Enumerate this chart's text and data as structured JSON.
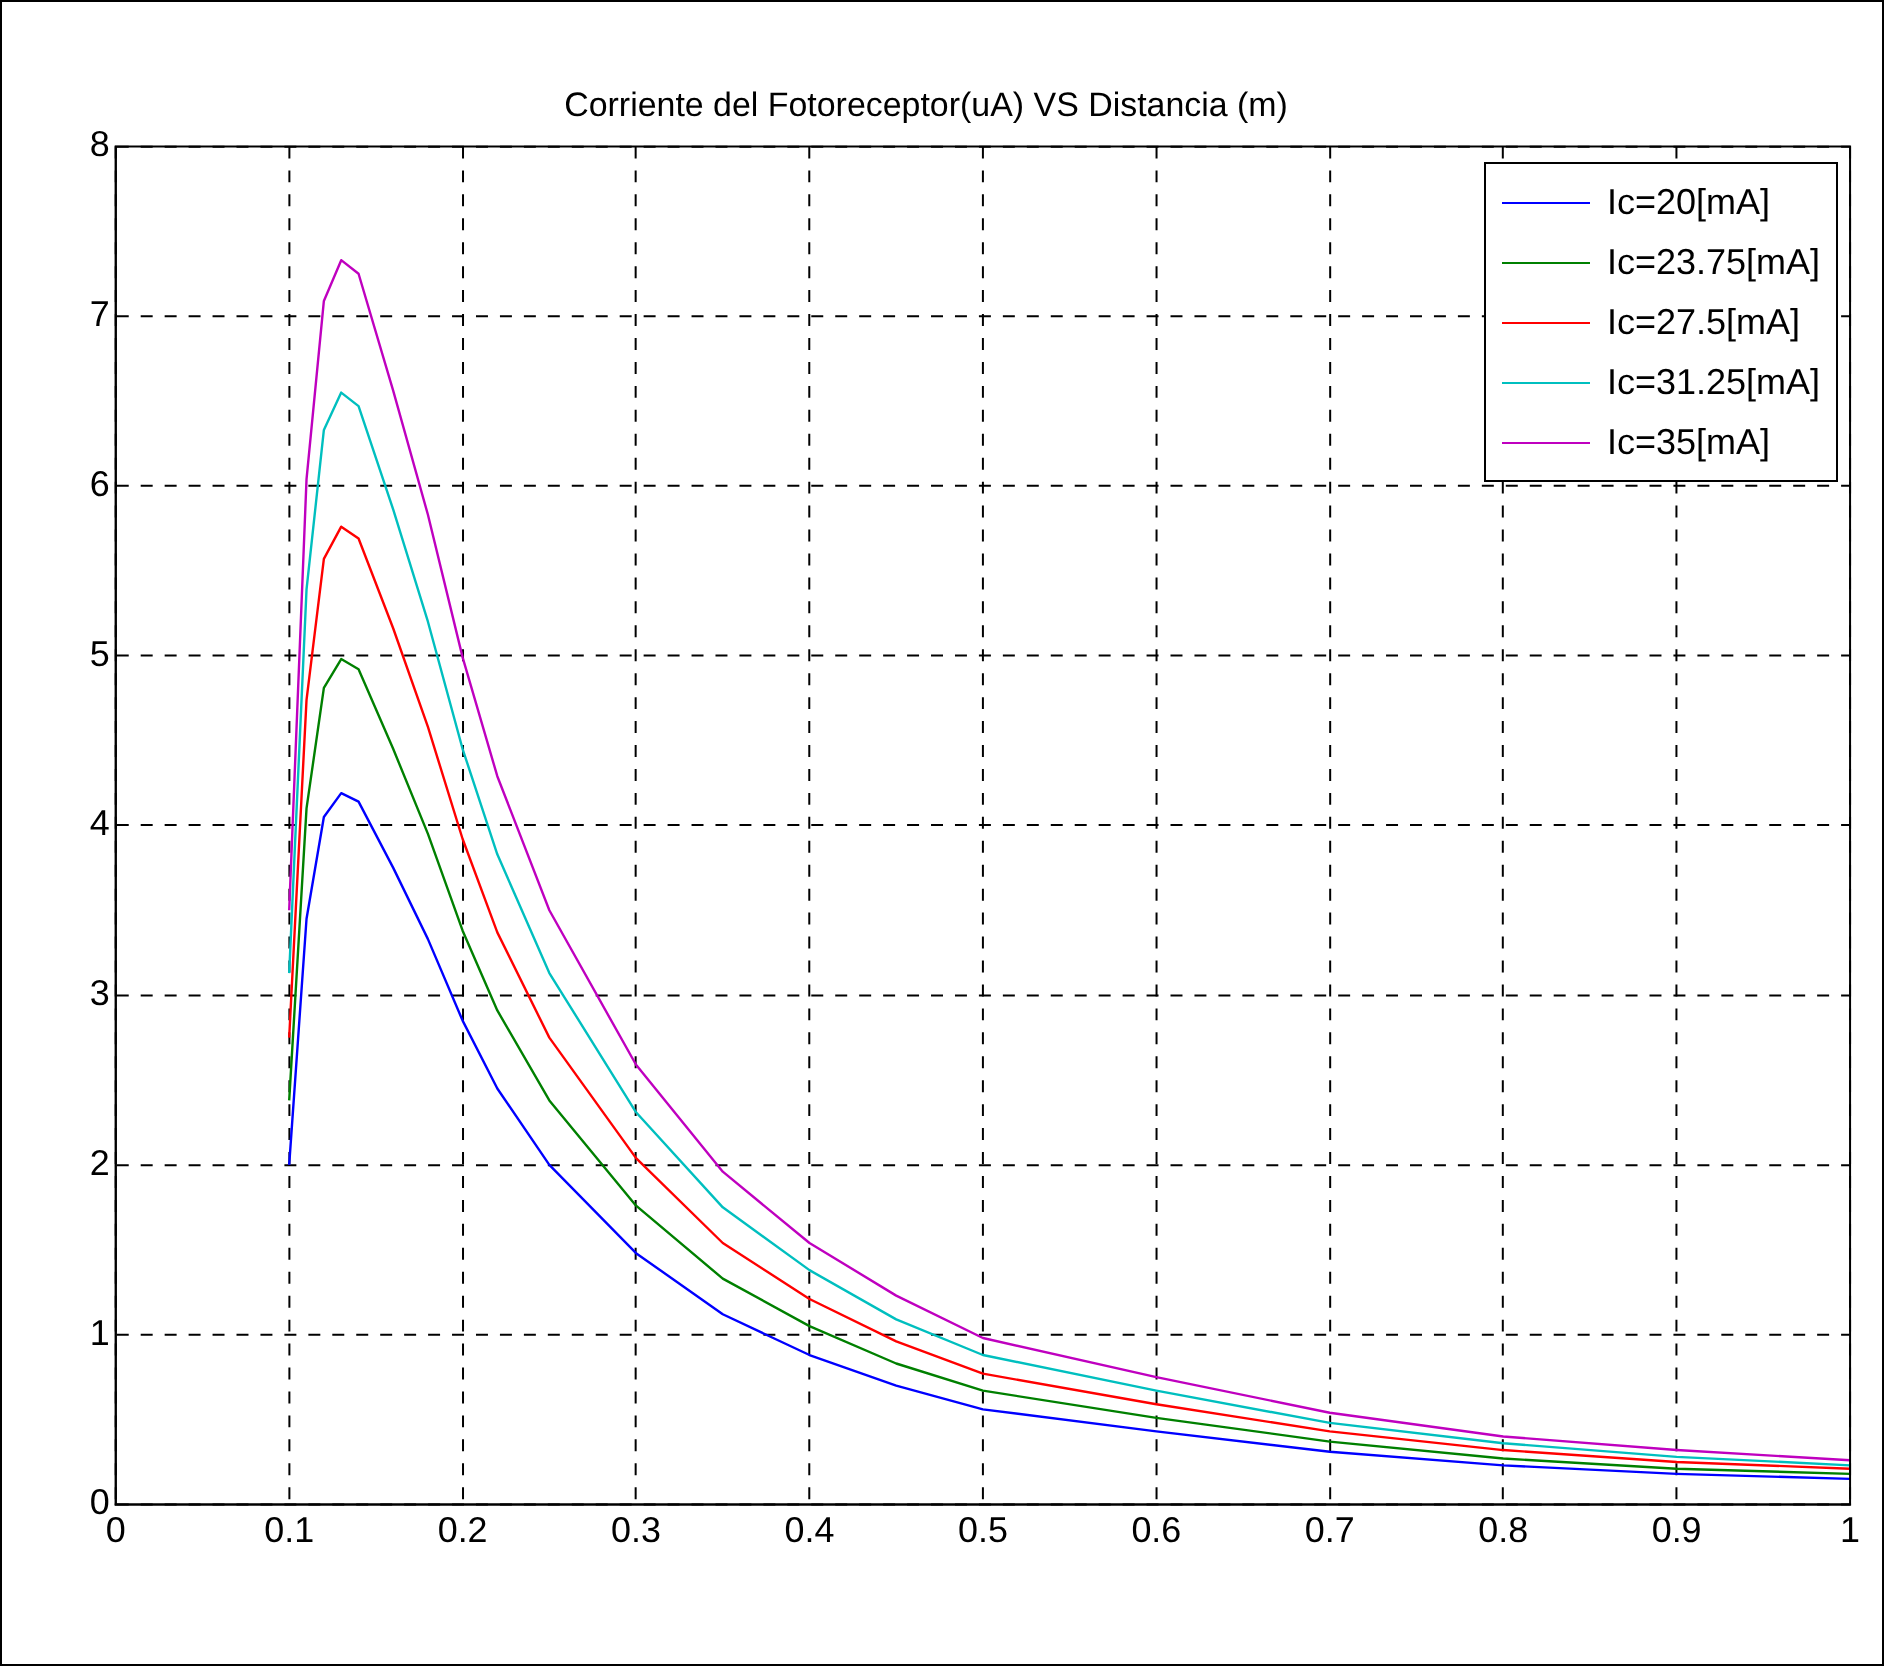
{
  "chart_data": {
    "type": "line",
    "title": "Corriente del Fotoreceptor(uA) VS Distancia (m)",
    "x": [
      0.1,
      0.11,
      0.12,
      0.13,
      0.14,
      0.16,
      0.18,
      0.2,
      0.22,
      0.25,
      0.3,
      0.35,
      0.4,
      0.45,
      0.5,
      0.6,
      0.7,
      0.8,
      0.9,
      1.0
    ],
    "series": [
      {
        "name": "Ic=20[mA]",
        "color": "#0000ff",
        "values": [
          2.0,
          3.45,
          4.05,
          4.19,
          4.14,
          3.75,
          3.33,
          2.85,
          2.45,
          2.0,
          1.48,
          1.12,
          0.88,
          0.7,
          0.56,
          0.43,
          0.31,
          0.23,
          0.18,
          0.15
        ]
      },
      {
        "name": "Ic=23.75[mA]",
        "color": "#008000",
        "values": [
          2.38,
          4.1,
          4.81,
          4.98,
          4.92,
          4.45,
          3.95,
          3.38,
          2.91,
          2.38,
          1.76,
          1.33,
          1.05,
          0.83,
          0.67,
          0.51,
          0.37,
          0.27,
          0.21,
          0.18
        ]
      },
      {
        "name": "Ic=27.5[mA]",
        "color": "#ff0000",
        "values": [
          2.75,
          4.74,
          5.57,
          5.76,
          5.69,
          5.16,
          4.58,
          3.92,
          3.37,
          2.75,
          2.04,
          1.54,
          1.21,
          0.96,
          0.77,
          0.59,
          0.43,
          0.32,
          0.25,
          0.21
        ]
      },
      {
        "name": "Ic=31.25[mA]",
        "color": "#00bfbf",
        "values": [
          3.13,
          5.39,
          6.33,
          6.55,
          6.47,
          5.86,
          5.2,
          4.45,
          3.83,
          3.13,
          2.31,
          1.75,
          1.38,
          1.09,
          0.88,
          0.67,
          0.48,
          0.36,
          0.28,
          0.23
        ]
      },
      {
        "name": "Ic=35[mA]",
        "color": "#bf00bf",
        "values": [
          3.5,
          6.04,
          7.09,
          7.33,
          7.25,
          6.56,
          5.83,
          4.99,
          4.29,
          3.5,
          2.59,
          1.96,
          1.54,
          1.23,
          0.98,
          0.75,
          0.54,
          0.4,
          0.32,
          0.26
        ]
      }
    ],
    "xlim": [
      0,
      1
    ],
    "xticks": [
      0,
      0.1,
      0.2,
      0.3,
      0.4,
      0.5,
      0.6,
      0.7,
      0.8,
      0.9,
      1
    ],
    "ylim": [
      0,
      8
    ],
    "yticks": [
      0,
      1,
      2,
      3,
      4,
      5,
      6,
      7,
      8
    ],
    "grid": true,
    "legend": "top right",
    "marker": "none",
    "line_style": "solid"
  }
}
